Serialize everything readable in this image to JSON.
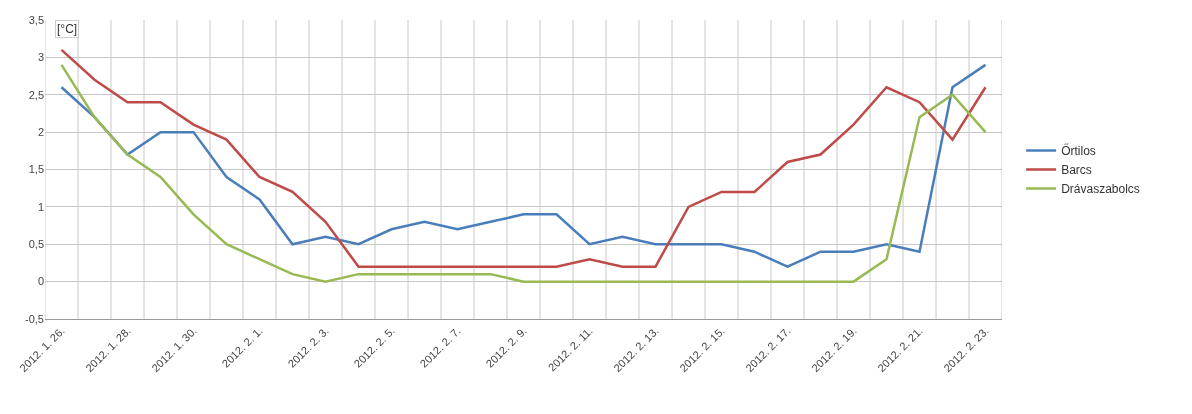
{
  "chart_data": {
    "type": "line",
    "ylabel": "[°C]",
    "categories": [
      "2012. 1. 26.",
      null,
      "2012. 1. 28.",
      null,
      "2012. 1. 30.",
      null,
      "2012. 2. 1.",
      null,
      "2012. 2. 3.",
      null,
      "2012. 2. 5.",
      null,
      "2012. 2. 7.",
      null,
      "2012. 2. 9.",
      null,
      "2012. 2. 11.",
      null,
      "2012. 2. 13.",
      null,
      "2012. 2. 15.",
      null,
      "2012. 2. 17.",
      null,
      "2012. 2. 19.",
      null,
      "2012. 2. 21.",
      null,
      "2012. 2. 23."
    ],
    "series": [
      {
        "name": "Őrtilos",
        "color": "#4a7ebb",
        "values": [
          2.6,
          2.2,
          1.7,
          2.0,
          2.0,
          1.4,
          1.1,
          0.5,
          0.6,
          0.5,
          0.7,
          0.8,
          0.7,
          0.8,
          0.9,
          0.9,
          0.5,
          0.6,
          0.5,
          0.5,
          0.5,
          0.4,
          0.2,
          0.4,
          0.4,
          0.5,
          0.4,
          2.6,
          2.9
        ]
      },
      {
        "name": "Barcs",
        "color": "#be4b48",
        "values": [
          3.1,
          2.7,
          2.4,
          2.4,
          2.1,
          1.9,
          1.4,
          1.2,
          0.8,
          0.2,
          0.2,
          0.2,
          0.2,
          0.2,
          0.2,
          0.2,
          0.3,
          0.2,
          0.2,
          1.0,
          1.2,
          1.2,
          1.6,
          1.7,
          2.1,
          2.6,
          2.4,
          1.9,
          2.6
        ]
      },
      {
        "name": "Drávaszabolcs",
        "color": "#98b954",
        "values": [
          2.9,
          2.2,
          1.7,
          1.4,
          0.9,
          0.5,
          0.3,
          0.1,
          0.0,
          0.1,
          0.1,
          0.1,
          0.1,
          0.1,
          0.0,
          0.0,
          0.0,
          0.0,
          0.0,
          0.0,
          0.0,
          0.0,
          0.0,
          0.0,
          0.0,
          0.3,
          2.2,
          2.5,
          2.0
        ]
      }
    ],
    "ylim": [
      -0.5,
      3.5
    ],
    "yticks": [
      {
        "value": -0.5,
        "label": "-0,5"
      },
      0,
      {
        "value": 0.5,
        "label": "0,5"
      },
      1,
      {
        "value": 1.5,
        "label": "1,5"
      },
      2,
      {
        "value": 2.5,
        "label": "2,5"
      },
      3,
      {
        "value": 3.5,
        "label": "3,5"
      }
    ],
    "grid": true,
    "legend": "right",
    "marker": "none",
    "line_style": "solid"
  }
}
